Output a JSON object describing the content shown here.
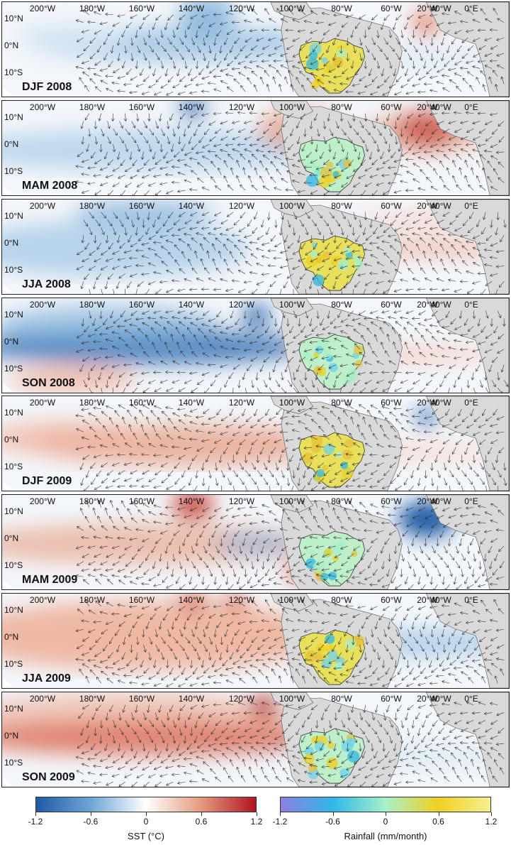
{
  "lon_labels": [
    "200°W",
    "180°W",
    "160°W",
    "140°W",
    "120°W",
    "100°W",
    "80°W",
    "60°W",
    "40°W",
    "20°W",
    "0°E"
  ],
  "lat_labels": [
    "10°N",
    "0°N",
    "10°S"
  ],
  "panels": [
    {
      "season": "DJF 2008",
      "sst_anomaly": "cold La Niña pattern in central Pacific"
    },
    {
      "season": "MAM 2008",
      "sst_anomaly": "cool Pacific, warm tropical Atlantic hotspot near 20°W"
    },
    {
      "season": "JJA 2008",
      "sst_anomaly": "weak cool Pacific, warm Atlantic band"
    },
    {
      "season": "SON 2008",
      "sst_anomaly": "strong cool equatorial Pacific"
    },
    {
      "season": "DJF 2009",
      "sst_anomaly": "warming Pacific, cool spot near 20°W"
    },
    {
      "season": "MAM 2009",
      "sst_anomaly": "warm Pacific, strong cold spot tropical Atlantic"
    },
    {
      "season": "JJA 2009",
      "sst_anomaly": "warm Pacific, cool Atlantic"
    },
    {
      "season": "SON 2009",
      "sst_anomaly": "strong El Niño warm equatorial Pacific"
    }
  ],
  "colorbars": {
    "sst": {
      "ticks": [
        "-1.2",
        "-0.6",
        "0",
        "0.6",
        "1.2"
      ],
      "title": "SST (°C)",
      "range": [
        -1.2,
        1.2
      ],
      "colors": [
        "#1f5aa6",
        "#6fa6d6",
        "#ffffff",
        "#e69a80",
        "#b0141e"
      ]
    },
    "rain": {
      "ticks": [
        "-1.2",
        "-0.6",
        "0",
        "0.6",
        "1.2"
      ],
      "title": "Rainfall (mm/month)",
      "range": [
        -1.2,
        1.2
      ],
      "colors": [
        "#8b7fe0",
        "#2fb8e8",
        "#a8f0c8",
        "#f0d020",
        "#f6f090"
      ]
    }
  }
}
